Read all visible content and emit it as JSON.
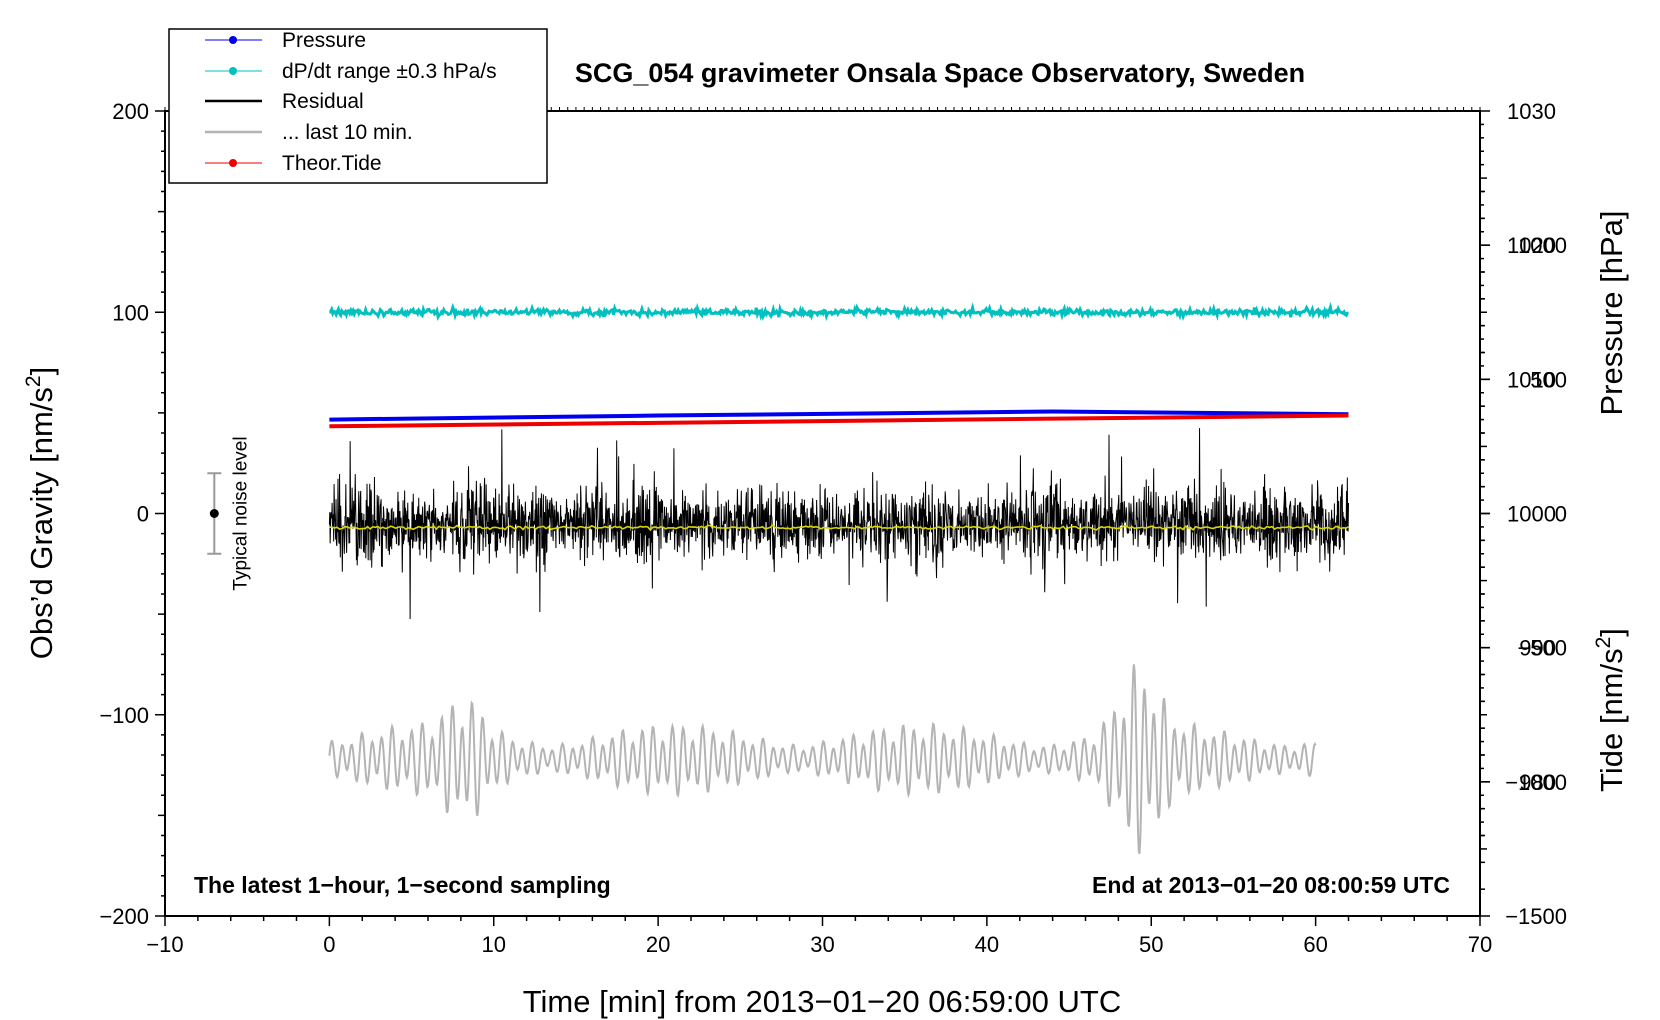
{
  "chart_data": {
    "type": "line",
    "title": "SCG_054 gravimeter Onsala Space Observatory, Sweden",
    "xlabel": "Time [min] from 2013−01−20 06:59:00 UTC",
    "ylabel_left": "Obs’d Gravity [nm/s2]",
    "ylabel_left_base": "Obs’d Gravity [nm/s",
    "ylabel_left_sup": "2",
    "ylabel_left_tail": "]",
    "ylabel_right_pressure": "Pressure [hPa]",
    "ylabel_right_tide": "Tide [nm/s2]",
    "ylabel_right_tide_base": "Tide [nm/s",
    "ylabel_right_tide_sup": "2",
    "ylabel_right_tide_tail": "]",
    "xlim": [
      -10,
      70
    ],
    "ylim_left": [
      -200,
      200
    ],
    "ylim_pressure": [
      970,
      1030
    ],
    "ylim_tide": [
      -1500,
      1500
    ],
    "x_ticks": [
      -10,
      0,
      10,
      20,
      30,
      40,
      50,
      60,
      70
    ],
    "x_tick_labels": [
      "−10",
      "0",
      "10",
      "20",
      "30",
      "40",
      "50",
      "60",
      "70"
    ],
    "y_left_ticks": [
      -200,
      -100,
      0,
      100,
      200
    ],
    "y_left_tick_labels": [
      "−200",
      "−100",
      "0",
      "100",
      "200"
    ],
    "pressure_ticks": [
      980,
      990,
      1000,
      1010,
      1020,
      1030
    ],
    "pressure_tick_labels": [
      "980",
      "990",
      "1000",
      "1010",
      "1020",
      "1030"
    ],
    "tide_ticks": [
      -1500,
      -1000,
      -500,
      0,
      500,
      1000
    ],
    "tide_tick_labels": [
      "−1500",
      "−1000",
      "−500",
      "0",
      "500",
      "1000"
    ],
    "bottom_left_note": "The latest 1−hour, 1−second sampling",
    "bottom_right_note": "End at 2013−01−20 08:00:59 UTC",
    "noise_indicator": {
      "label": "Typical noise level",
      "x": -7,
      "center": 0,
      "half_range": 20
    },
    "legend": [
      {
        "label": "Pressure",
        "color": "#0000ee",
        "marker": true
      },
      {
        "label": "dP/dt range ±0.3 hPa/s",
        "color": "#00c0c0",
        "marker": true
      },
      {
        "label": "Residual",
        "color": "#000000",
        "marker": false
      },
      {
        "label": "... last 10 min.",
        "color": "#b4b4b4",
        "marker": false
      },
      {
        "label": "Theor.Tide",
        "color": "#ee0000",
        "marker": true
      }
    ],
    "series": [
      {
        "name": "Pressure",
        "axis": "pressure",
        "color": "#0000ee",
        "x": [
          0,
          20,
          44,
          62
        ],
        "values": [
          1007.0,
          1007.3,
          1007.6,
          1007.4
        ]
      },
      {
        "name": "dP/dt range ±0.3 hPa/s",
        "axis": "left",
        "color": "#00c0c0",
        "x_range": [
          0,
          62
        ],
        "center": 100,
        "noise_amplitude": 2
      },
      {
        "name": "Residual",
        "axis": "left",
        "color": "#000000",
        "x_range": [
          0,
          62
        ],
        "center": -5,
        "typical_amplitude": 20,
        "min": -67,
        "max": 54
      },
      {
        "name": "Residual mean",
        "axis": "left",
        "color": "#d8d800",
        "x_range": [
          0,
          62
        ],
        "center": -7
      },
      {
        "name": "Theor.Tide",
        "axis": "tide",
        "color": "#ee0000",
        "x": [
          0,
          62
        ],
        "values": [
          325,
          365
        ]
      },
      {
        "name": "... last 10 min.",
        "axis": "left",
        "color": "#b4b4b4",
        "x_range": [
          0,
          60
        ],
        "center": -122,
        "typical_amplitude": 15,
        "min": -177,
        "max": -63
      }
    ]
  }
}
